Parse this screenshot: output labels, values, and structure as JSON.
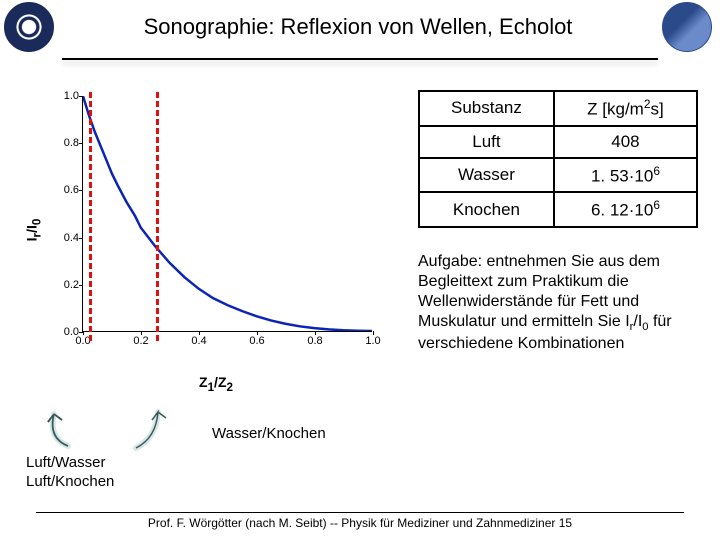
{
  "header": {
    "title": "Sonographie: Reflexion von Wellen, Echolot"
  },
  "chart": {
    "type": "line",
    "y_label_html": "I<sub>r</sub>/I<sub>0</sub>",
    "x_label_html": "Z<sub>1</sub>/Z<sub>2</sub>",
    "xlim": [
      0,
      1.0
    ],
    "ylim": [
      0,
      1.0
    ],
    "xticks": [
      0.0,
      0.2,
      0.4,
      0.6,
      0.8,
      1.0
    ],
    "yticks": [
      0.0,
      0.2,
      0.4,
      0.6,
      0.8,
      1.0
    ],
    "curve_color": "#0b24b5",
    "curve_width": 2.5,
    "curve_points_xy": [
      [
        0.0,
        1.0
      ],
      [
        0.02,
        0.92
      ],
      [
        0.04,
        0.85
      ],
      [
        0.06,
        0.79
      ],
      [
        0.08,
        0.73
      ],
      [
        0.1,
        0.67
      ],
      [
        0.12,
        0.62
      ],
      [
        0.15,
        0.55
      ],
      [
        0.18,
        0.49
      ],
      [
        0.2,
        0.44
      ],
      [
        0.25,
        0.36
      ],
      [
        0.3,
        0.29
      ],
      [
        0.35,
        0.23
      ],
      [
        0.4,
        0.18
      ],
      [
        0.45,
        0.14
      ],
      [
        0.5,
        0.11
      ],
      [
        0.55,
        0.085
      ],
      [
        0.6,
        0.063
      ],
      [
        0.65,
        0.045
      ],
      [
        0.7,
        0.031
      ],
      [
        0.75,
        0.02
      ],
      [
        0.8,
        0.0123
      ],
      [
        0.85,
        0.0066
      ],
      [
        0.9,
        0.0028
      ],
      [
        0.95,
        0.0007
      ],
      [
        1.0,
        0.0
      ]
    ],
    "marker_lines": [
      {
        "x": 0.02,
        "color": "#e01010",
        "label": "Luft/Wasser\nLuft/Knochen"
      },
      {
        "x": 0.25,
        "color": "#e01010",
        "label": "Wasser/Knochen"
      }
    ],
    "background_color": "#ffffff",
    "tick_fontsize": 11,
    "label_fontsize": 14
  },
  "arrows": {
    "fill_color": "#bcd6d6",
    "stroke_color": "#3a5a5a"
  },
  "annotations": {
    "wasser_knochen": "Wasser/Knochen",
    "luft_wasser": "Luft/Wasser",
    "luft_knochen": "Luft/Knochen"
  },
  "table": {
    "columns": [
      "Substanz",
      "Z [kg/m²s]"
    ],
    "header_html": [
      "Substanz",
      "Z [kg/m<span class=\"sup\">2</span>s]"
    ],
    "rows_html": [
      [
        "Luft",
        "408"
      ],
      [
        "Wasser",
        "1. 53·10<span class=\"sup\">6</span>"
      ],
      [
        "Knochen",
        "6. 12·10<span class=\"sup\">6</span>"
      ]
    ],
    "border_color": "#000000",
    "cell_fontsize": 17
  },
  "task_html": "Aufgabe: entnehmen Sie aus dem Begleittext zum Praktikum die Wellenwiderstände für Fett und Muskulatur und ermitteln Sie I<span class=\"sub\">r</span>/I<span class=\"sub\">0</span> für verschiedene Kombinationen",
  "footer": {
    "text": "Prof. F. Wörgötter (nach M. Seibt) -- Physik für Mediziner und Zahnmediziner   15"
  }
}
